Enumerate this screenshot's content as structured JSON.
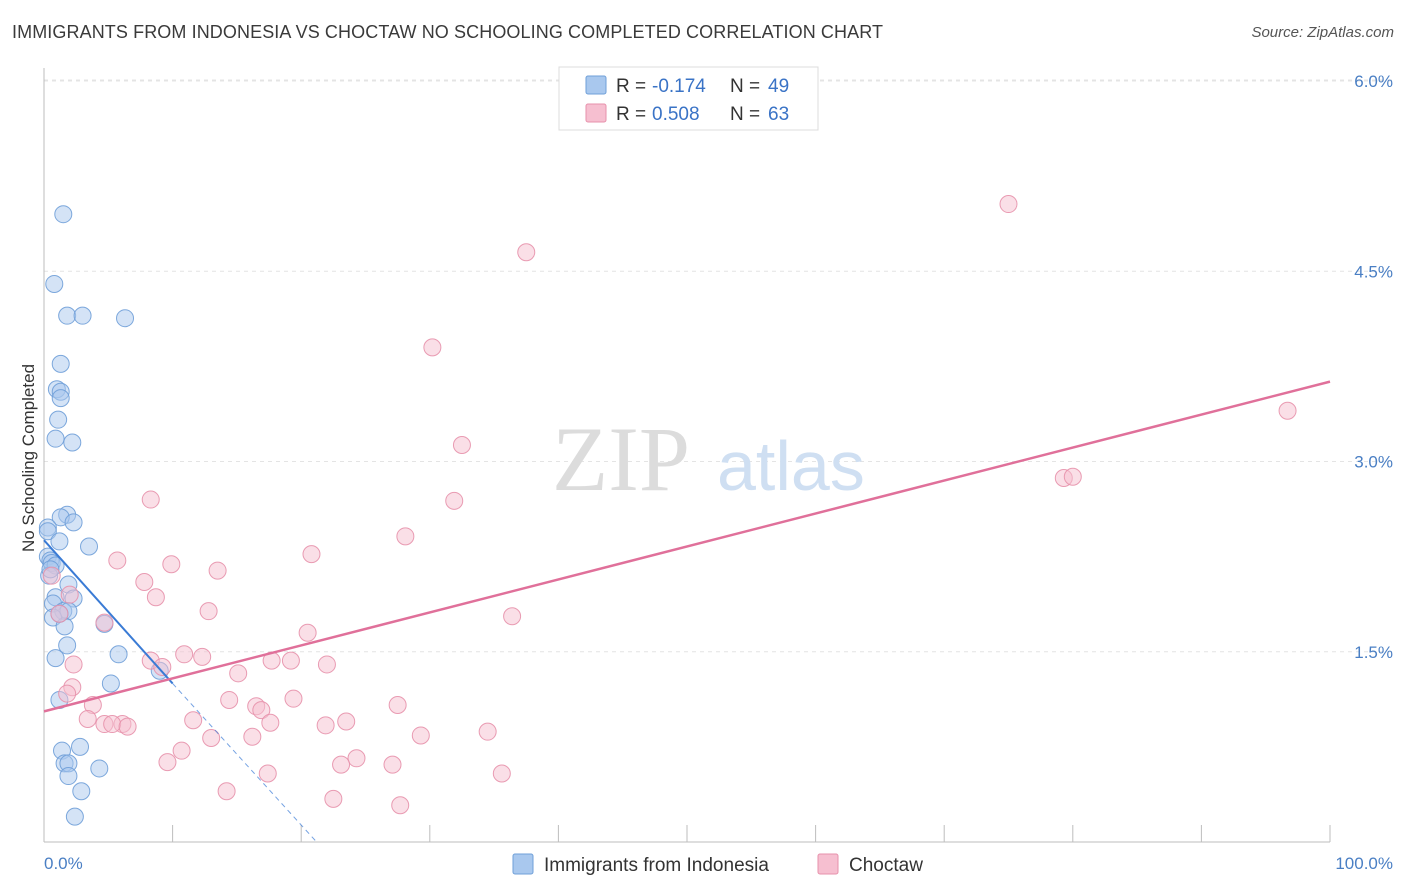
{
  "title": "IMMIGRANTS FROM INDONESIA VS CHOCTAW NO SCHOOLING COMPLETED CORRELATION CHART",
  "source": "Source: ZipAtlas.com",
  "watermark": {
    "part1": "ZIP",
    "part2": "atlas"
  },
  "colors": {
    "blue_fill": "#a9c8ee",
    "blue_stroke": "#6f9fd8",
    "blue_line": "#3a7bd5",
    "pink_fill": "#f6bfd0",
    "pink_stroke": "#e791ab",
    "pink_line": "#e0709a",
    "grid": "#e4e4e4",
    "tick_text": "#4a7fc4"
  },
  "legend": {
    "rows": [
      {
        "r_label": "R = ",
        "r_value": "-0.174",
        "n_label": "N = ",
        "n_value": "49"
      },
      {
        "r_label": "R = ",
        "r_value": "0.508",
        "n_label": "N = ",
        "n_value": "63"
      }
    ]
  },
  "chart_data": {
    "type": "scatter",
    "xlabel": "",
    "ylabel": "No Schooling Completed",
    "xlim": [
      0,
      100
    ],
    "ylim": [
      0,
      6.15
    ],
    "x_ticks": [
      "0.0%",
      "100.0%"
    ],
    "y_ticks": [
      {
        "value": 1.5,
        "label": "1.5%"
      },
      {
        "value": 3.0,
        "label": "3.0%"
      },
      {
        "value": 4.5,
        "label": "4.5%"
      },
      {
        "value": 6.0,
        "label": "6.0%"
      }
    ],
    "grid": true,
    "legend_position": "top-center",
    "series": [
      {
        "name": "Immigrants from Indonesia",
        "points": [
          [
            1.5,
            4.95
          ],
          [
            0.8,
            4.4
          ],
          [
            1.8,
            4.15
          ],
          [
            3.0,
            4.15
          ],
          [
            6.3,
            4.13
          ],
          [
            1.3,
            3.77
          ],
          [
            1.0,
            3.57
          ],
          [
            1.3,
            3.55
          ],
          [
            1.3,
            3.5
          ],
          [
            1.1,
            3.33
          ],
          [
            0.9,
            3.18
          ],
          [
            2.2,
            3.15
          ],
          [
            1.8,
            2.58
          ],
          [
            1.3,
            2.56
          ],
          [
            2.3,
            2.52
          ],
          [
            0.3,
            2.48
          ],
          [
            0.3,
            2.45
          ],
          [
            1.2,
            2.37
          ],
          [
            3.5,
            2.33
          ],
          [
            0.3,
            2.25
          ],
          [
            0.5,
            2.22
          ],
          [
            0.6,
            2.2
          ],
          [
            0.9,
            2.18
          ],
          [
            1.9,
            2.03
          ],
          [
            0.9,
            1.93
          ],
          [
            2.3,
            1.92
          ],
          [
            0.7,
            1.88
          ],
          [
            1.5,
            1.82
          ],
          [
            1.9,
            1.82
          ],
          [
            0.7,
            1.77
          ],
          [
            1.6,
            1.7
          ],
          [
            4.7,
            1.72
          ],
          [
            1.8,
            1.55
          ],
          [
            5.8,
            1.48
          ],
          [
            0.9,
            1.45
          ],
          [
            9.0,
            1.35
          ],
          [
            5.2,
            1.25
          ],
          [
            1.2,
            1.12
          ],
          [
            1.4,
            0.72
          ],
          [
            2.8,
            0.75
          ],
          [
            1.6,
            0.62
          ],
          [
            1.9,
            0.62
          ],
          [
            4.3,
            0.58
          ],
          [
            1.9,
            0.52
          ],
          [
            2.9,
            0.4
          ],
          [
            2.4,
            0.2
          ],
          [
            0.4,
            2.1
          ],
          [
            0.5,
            2.15
          ],
          [
            1.2,
            1.8
          ]
        ]
      },
      {
        "name": "Choctaw",
        "points": [
          [
            75.0,
            5.03
          ],
          [
            37.5,
            4.65
          ],
          [
            30.2,
            3.9
          ],
          [
            96.7,
            3.4
          ],
          [
            32.5,
            3.13
          ],
          [
            79.3,
            2.87
          ],
          [
            80.0,
            2.88
          ],
          [
            8.3,
            2.7
          ],
          [
            31.9,
            2.69
          ],
          [
            28.1,
            2.41
          ],
          [
            20.8,
            2.27
          ],
          [
            5.7,
            2.22
          ],
          [
            9.9,
            2.19
          ],
          [
            13.5,
            2.14
          ],
          [
            7.8,
            2.05
          ],
          [
            8.7,
            1.93
          ],
          [
            12.8,
            1.82
          ],
          [
            36.4,
            1.78
          ],
          [
            4.7,
            1.73
          ],
          [
            20.5,
            1.65
          ],
          [
            10.9,
            1.48
          ],
          [
            12.3,
            1.46
          ],
          [
            8.3,
            1.43
          ],
          [
            17.7,
            1.43
          ],
          [
            19.2,
            1.43
          ],
          [
            22.0,
            1.4
          ],
          [
            9.2,
            1.38
          ],
          [
            2.3,
            1.4
          ],
          [
            15.1,
            1.33
          ],
          [
            2.2,
            1.22
          ],
          [
            1.8,
            1.17
          ],
          [
            14.4,
            1.12
          ],
          [
            19.4,
            1.13
          ],
          [
            27.5,
            1.08
          ],
          [
            3.8,
            1.08
          ],
          [
            16.5,
            1.07
          ],
          [
            16.9,
            1.04
          ],
          [
            3.4,
            0.97
          ],
          [
            11.6,
            0.96
          ],
          [
            23.5,
            0.95
          ],
          [
            17.6,
            0.94
          ],
          [
            6.1,
            0.93
          ],
          [
            4.7,
            0.93
          ],
          [
            5.3,
            0.93
          ],
          [
            21.9,
            0.92
          ],
          [
            6.5,
            0.91
          ],
          [
            34.5,
            0.87
          ],
          [
            13.0,
            0.82
          ],
          [
            16.2,
            0.83
          ],
          [
            29.3,
            0.84
          ],
          [
            10.7,
            0.72
          ],
          [
            9.6,
            0.63
          ],
          [
            24.3,
            0.66
          ],
          [
            27.1,
            0.61
          ],
          [
            23.1,
            0.61
          ],
          [
            17.4,
            0.54
          ],
          [
            35.6,
            0.54
          ],
          [
            14.2,
            0.4
          ],
          [
            22.5,
            0.34
          ],
          [
            27.7,
            0.29
          ],
          [
            0.6,
            2.1
          ],
          [
            1.2,
            1.8
          ],
          [
            2.0,
            1.95
          ]
        ]
      }
    ],
    "trendlines": [
      {
        "series": "Immigrants from Indonesia",
        "from": [
          0,
          2.38
        ],
        "to": [
          10,
          1.25
        ],
        "dashed_to": [
          21.2,
          0.0
        ]
      },
      {
        "series": "Choctaw",
        "from": [
          0,
          1.03
        ],
        "to": [
          100,
          3.63
        ]
      }
    ]
  }
}
